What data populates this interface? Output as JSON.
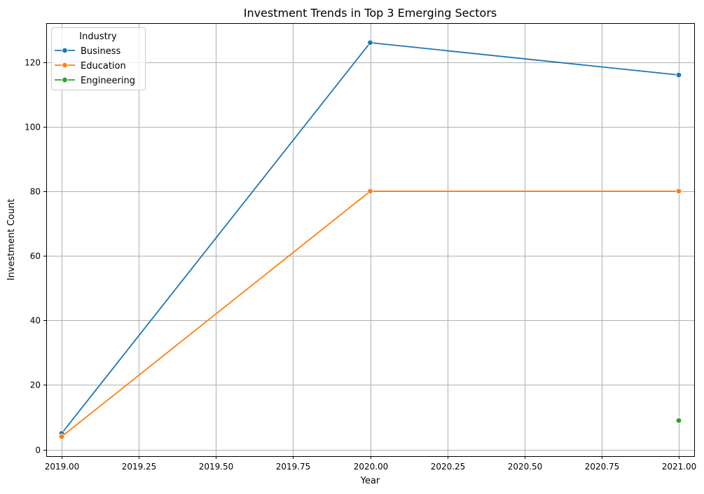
{
  "chart_data": {
    "type": "line",
    "title": "Investment Trends in Top 3 Emerging Sectors",
    "xlabel": "Year",
    "ylabel": "Investment Count",
    "xlim": [
      2018.95,
      2021.05
    ],
    "ylim": [
      -2.05,
      132.05
    ],
    "xticks": [
      2019.0,
      2019.25,
      2019.5,
      2019.75,
      2020.0,
      2020.25,
      2020.5,
      2020.75,
      2021.0
    ],
    "xtick_labels": [
      "2019.00",
      "2019.25",
      "2019.50",
      "2019.75",
      "2020.00",
      "2020.25",
      "2020.50",
      "2020.75",
      "2021.00"
    ],
    "yticks": [
      0,
      20,
      40,
      60,
      80,
      100,
      120
    ],
    "ytick_labels": [
      "0",
      "20",
      "40",
      "60",
      "80",
      "100",
      "120"
    ],
    "grid": true,
    "legend": {
      "title": "Industry",
      "placement": "top-left"
    },
    "series": [
      {
        "name": "Business",
        "color": "#1f77b4",
        "points": [
          [
            2019,
            5
          ],
          [
            2020,
            126
          ],
          [
            2021,
            116
          ]
        ]
      },
      {
        "name": "Education",
        "color": "#ff7f0e",
        "points": [
          [
            2019,
            4
          ],
          [
            2020,
            80
          ],
          [
            2021,
            80
          ]
        ]
      },
      {
        "name": "Engineering",
        "color": "#2ca02c",
        "points": [
          [
            2021,
            9
          ]
        ]
      }
    ]
  }
}
